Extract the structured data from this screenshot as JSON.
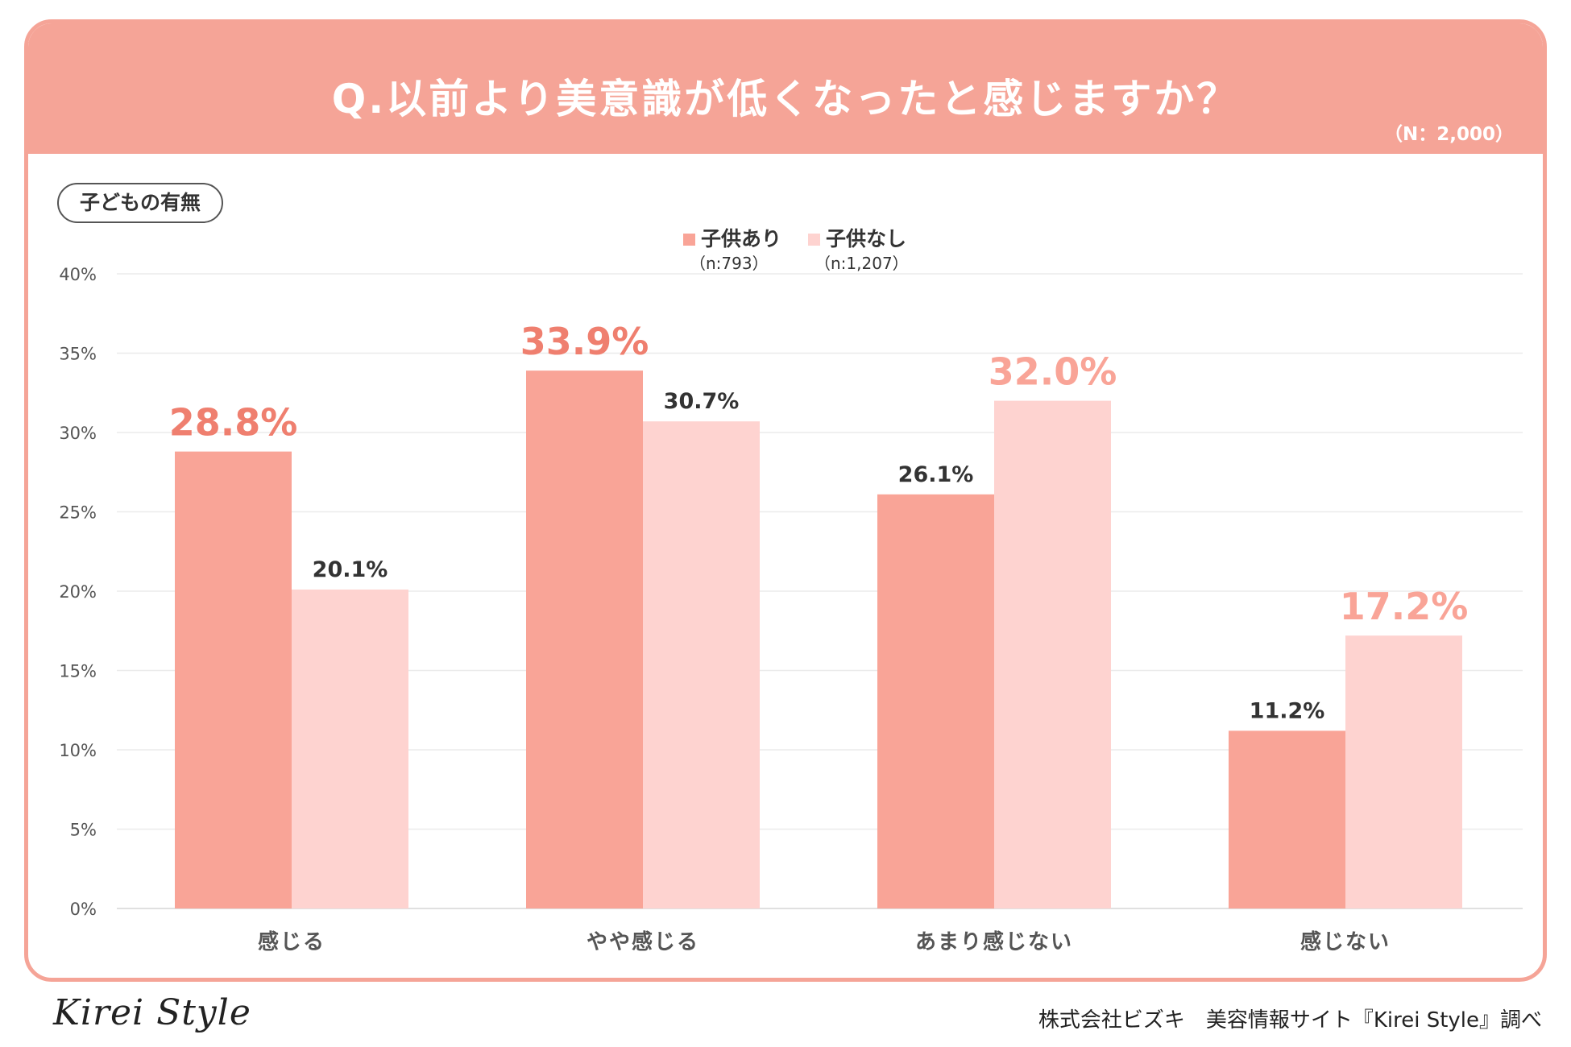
{
  "header": {
    "title": "Q.以前より美意識が低くなったと感じますか？",
    "sample_size": "（N：2,000）"
  },
  "segment_label": "子どもの有無",
  "footer": {
    "logo": "Kirei Style",
    "credit": "株式会社ビズキ　美容情報サイト『Kirei Style』調べ"
  },
  "colors": {
    "banner": "#f5a497",
    "series_with_children": "#f9a497",
    "series_without_children": "#fed3d0",
    "highlight_label_dark": "#ef7f6f",
    "highlight_label_light": "#f9a497",
    "label_normal": "#333333"
  },
  "chart_data": {
    "type": "bar",
    "categories": [
      "感じる",
      "やや感じる",
      "あまり感じない",
      "感じない"
    ],
    "y_ticks": [
      "0%",
      "5%",
      "10%",
      "15%",
      "20%",
      "25%",
      "30%",
      "35%",
      "40%"
    ],
    "ylim": [
      0,
      40
    ],
    "grid": true,
    "legend_position": "top-center",
    "series": [
      {
        "name": "子供あり",
        "n_label": "（n:793）",
        "values": [
          28.8,
          33.9,
          26.1,
          11.2
        ],
        "labels": [
          "28.8%",
          "33.9%",
          "26.1%",
          "11.2%"
        ],
        "highlight": [
          true,
          true,
          false,
          false
        ]
      },
      {
        "name": "子供なし",
        "n_label": "（n:1,207）",
        "values": [
          20.1,
          30.7,
          32.0,
          17.2
        ],
        "labels": [
          "20.1%",
          "30.7%",
          "32.0%",
          "17.2%"
        ],
        "highlight": [
          false,
          false,
          true,
          true
        ]
      }
    ]
  }
}
